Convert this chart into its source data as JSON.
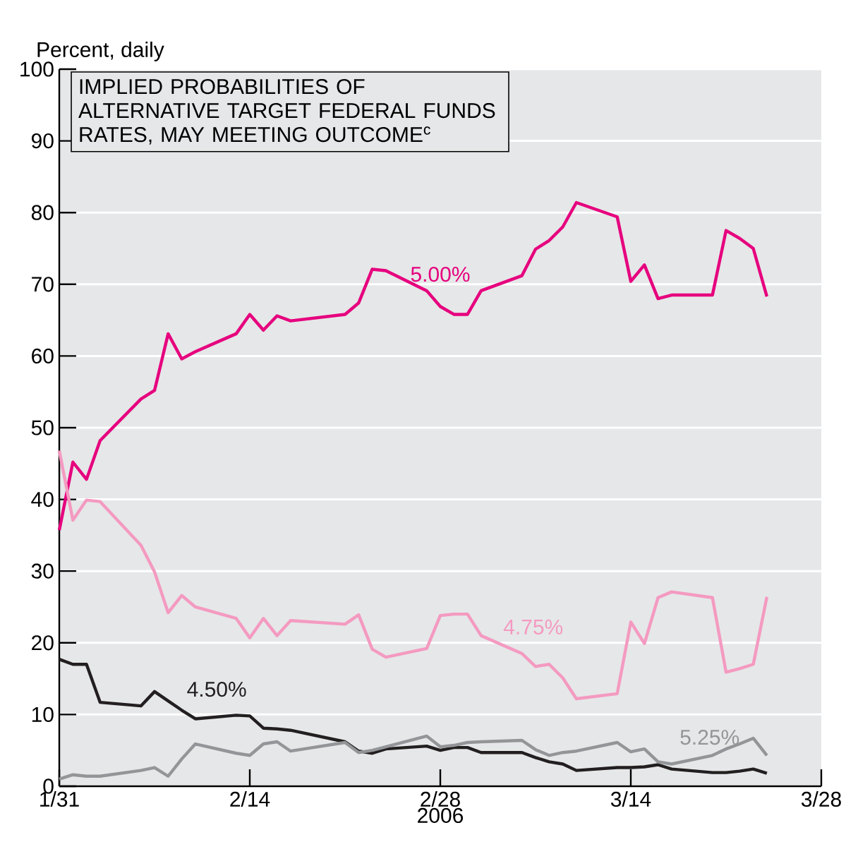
{
  "chart_data": {
    "type": "line",
    "title": "IMPLIED PROBABILITIES OF ALTERNATIVE TARGET FEDERAL FUNDS RATES, MAY MEETING OUTCOME$^{c}$",
    "ylabel": "Percent, daily",
    "xlabel": "2006",
    "x": [
      "2006-01-31",
      "2006-02-01",
      "2006-02-02",
      "2006-02-03",
      "2006-02-06",
      "2006-02-07",
      "2006-02-08",
      "2006-02-09",
      "2006-02-10",
      "2006-02-13",
      "2006-02-14",
      "2006-02-15",
      "2006-02-16",
      "2006-02-17",
      "2006-02-21",
      "2006-02-22",
      "2006-02-23",
      "2006-02-24",
      "2006-02-27",
      "2006-02-28",
      "2006-03-01",
      "2006-03-02",
      "2006-03-03",
      "2006-03-06",
      "2006-03-07",
      "2006-03-08",
      "2006-03-09",
      "2006-03-10",
      "2006-03-13",
      "2006-03-14",
      "2006-03-15",
      "2006-03-16",
      "2006-03-17",
      "2006-03-20",
      "2006-03-21",
      "2006-03-22",
      "2006-03-23",
      "2006-03-24"
    ],
    "series": [
      {
        "name": "5.00%",
        "color": "#e6007e",
        "values": [
          35.7,
          45.2,
          42.8,
          48.2,
          54.0,
          55.2,
          63.1,
          59.6,
          60.6,
          63.1,
          65.8,
          63.6,
          65.6,
          64.9,
          65.8,
          67.4,
          72.1,
          71.9,
          69.1,
          66.9,
          65.8,
          65.8,
          69.1,
          71.2,
          74.9,
          76.1,
          78.0,
          81.4,
          79.4,
          70.4,
          72.7,
          68.0,
          68.5,
          68.5,
          77.5,
          76.4,
          75.0,
          68.3
        ]
      },
      {
        "name": "4.75%",
        "color": "#f49ac1",
        "values": [
          46.8,
          37.1,
          39.9,
          39.7,
          33.6,
          29.9,
          24.2,
          26.6,
          25.0,
          23.4,
          20.7,
          23.4,
          21.0,
          23.1,
          22.6,
          23.9,
          19.1,
          18.0,
          19.2,
          23.8,
          24.0,
          24.0,
          21.0,
          18.5,
          16.7,
          17.0,
          15.1,
          12.2,
          12.9,
          22.9,
          19.9,
          26.3,
          27.1,
          26.3,
          15.9,
          16.4,
          17.0,
          26.4
        ]
      },
      {
        "name": "4.50%",
        "color": "#231f20",
        "values": [
          17.7,
          17.0,
          17.0,
          11.7,
          11.2,
          13.2,
          11.9,
          10.6,
          9.4,
          9.9,
          9.8,
          8.1,
          8.0,
          7.8,
          6.2,
          4.9,
          4.6,
          5.2,
          5.6,
          5.0,
          5.4,
          5.4,
          4.7,
          4.7,
          4.0,
          3.4,
          3.1,
          2.2,
          2.6,
          2.6,
          2.7,
          3.0,
          2.4,
          1.9,
          1.9,
          2.1,
          2.4,
          1.8
        ]
      },
      {
        "name": "5.25%",
        "color": "#939598",
        "values": [
          1.0,
          1.6,
          1.4,
          1.4,
          2.2,
          2.6,
          1.4,
          3.8,
          5.9,
          4.6,
          4.3,
          5.9,
          6.2,
          4.9,
          6.1,
          4.7,
          5.0,
          5.5,
          7.0,
          5.5,
          5.7,
          6.1,
          6.2,
          6.4,
          5.1,
          4.3,
          4.7,
          4.9,
          6.1,
          4.8,
          5.2,
          3.4,
          3.1,
          4.3,
          5.2,
          5.9,
          6.7,
          4.3
        ]
      }
    ],
    "xlim": [
      "2006-01-31",
      "2006-03-28"
    ],
    "xticks": [
      {
        "value": "2006-01-31",
        "label": "1/31"
      },
      {
        "value": "2006-02-14",
        "label": "2/14"
      },
      {
        "value": "2006-02-28",
        "label": "2/28"
      },
      {
        "value": "2006-03-14",
        "label": "3/14"
      },
      {
        "value": "2006-03-28",
        "label": "3/28"
      }
    ],
    "ylim": [
      0,
      100
    ],
    "yticks": [
      0,
      10,
      20,
      30,
      40,
      50,
      60,
      70,
      80,
      90,
      100
    ],
    "grid": "y",
    "marker": "none"
  }
}
